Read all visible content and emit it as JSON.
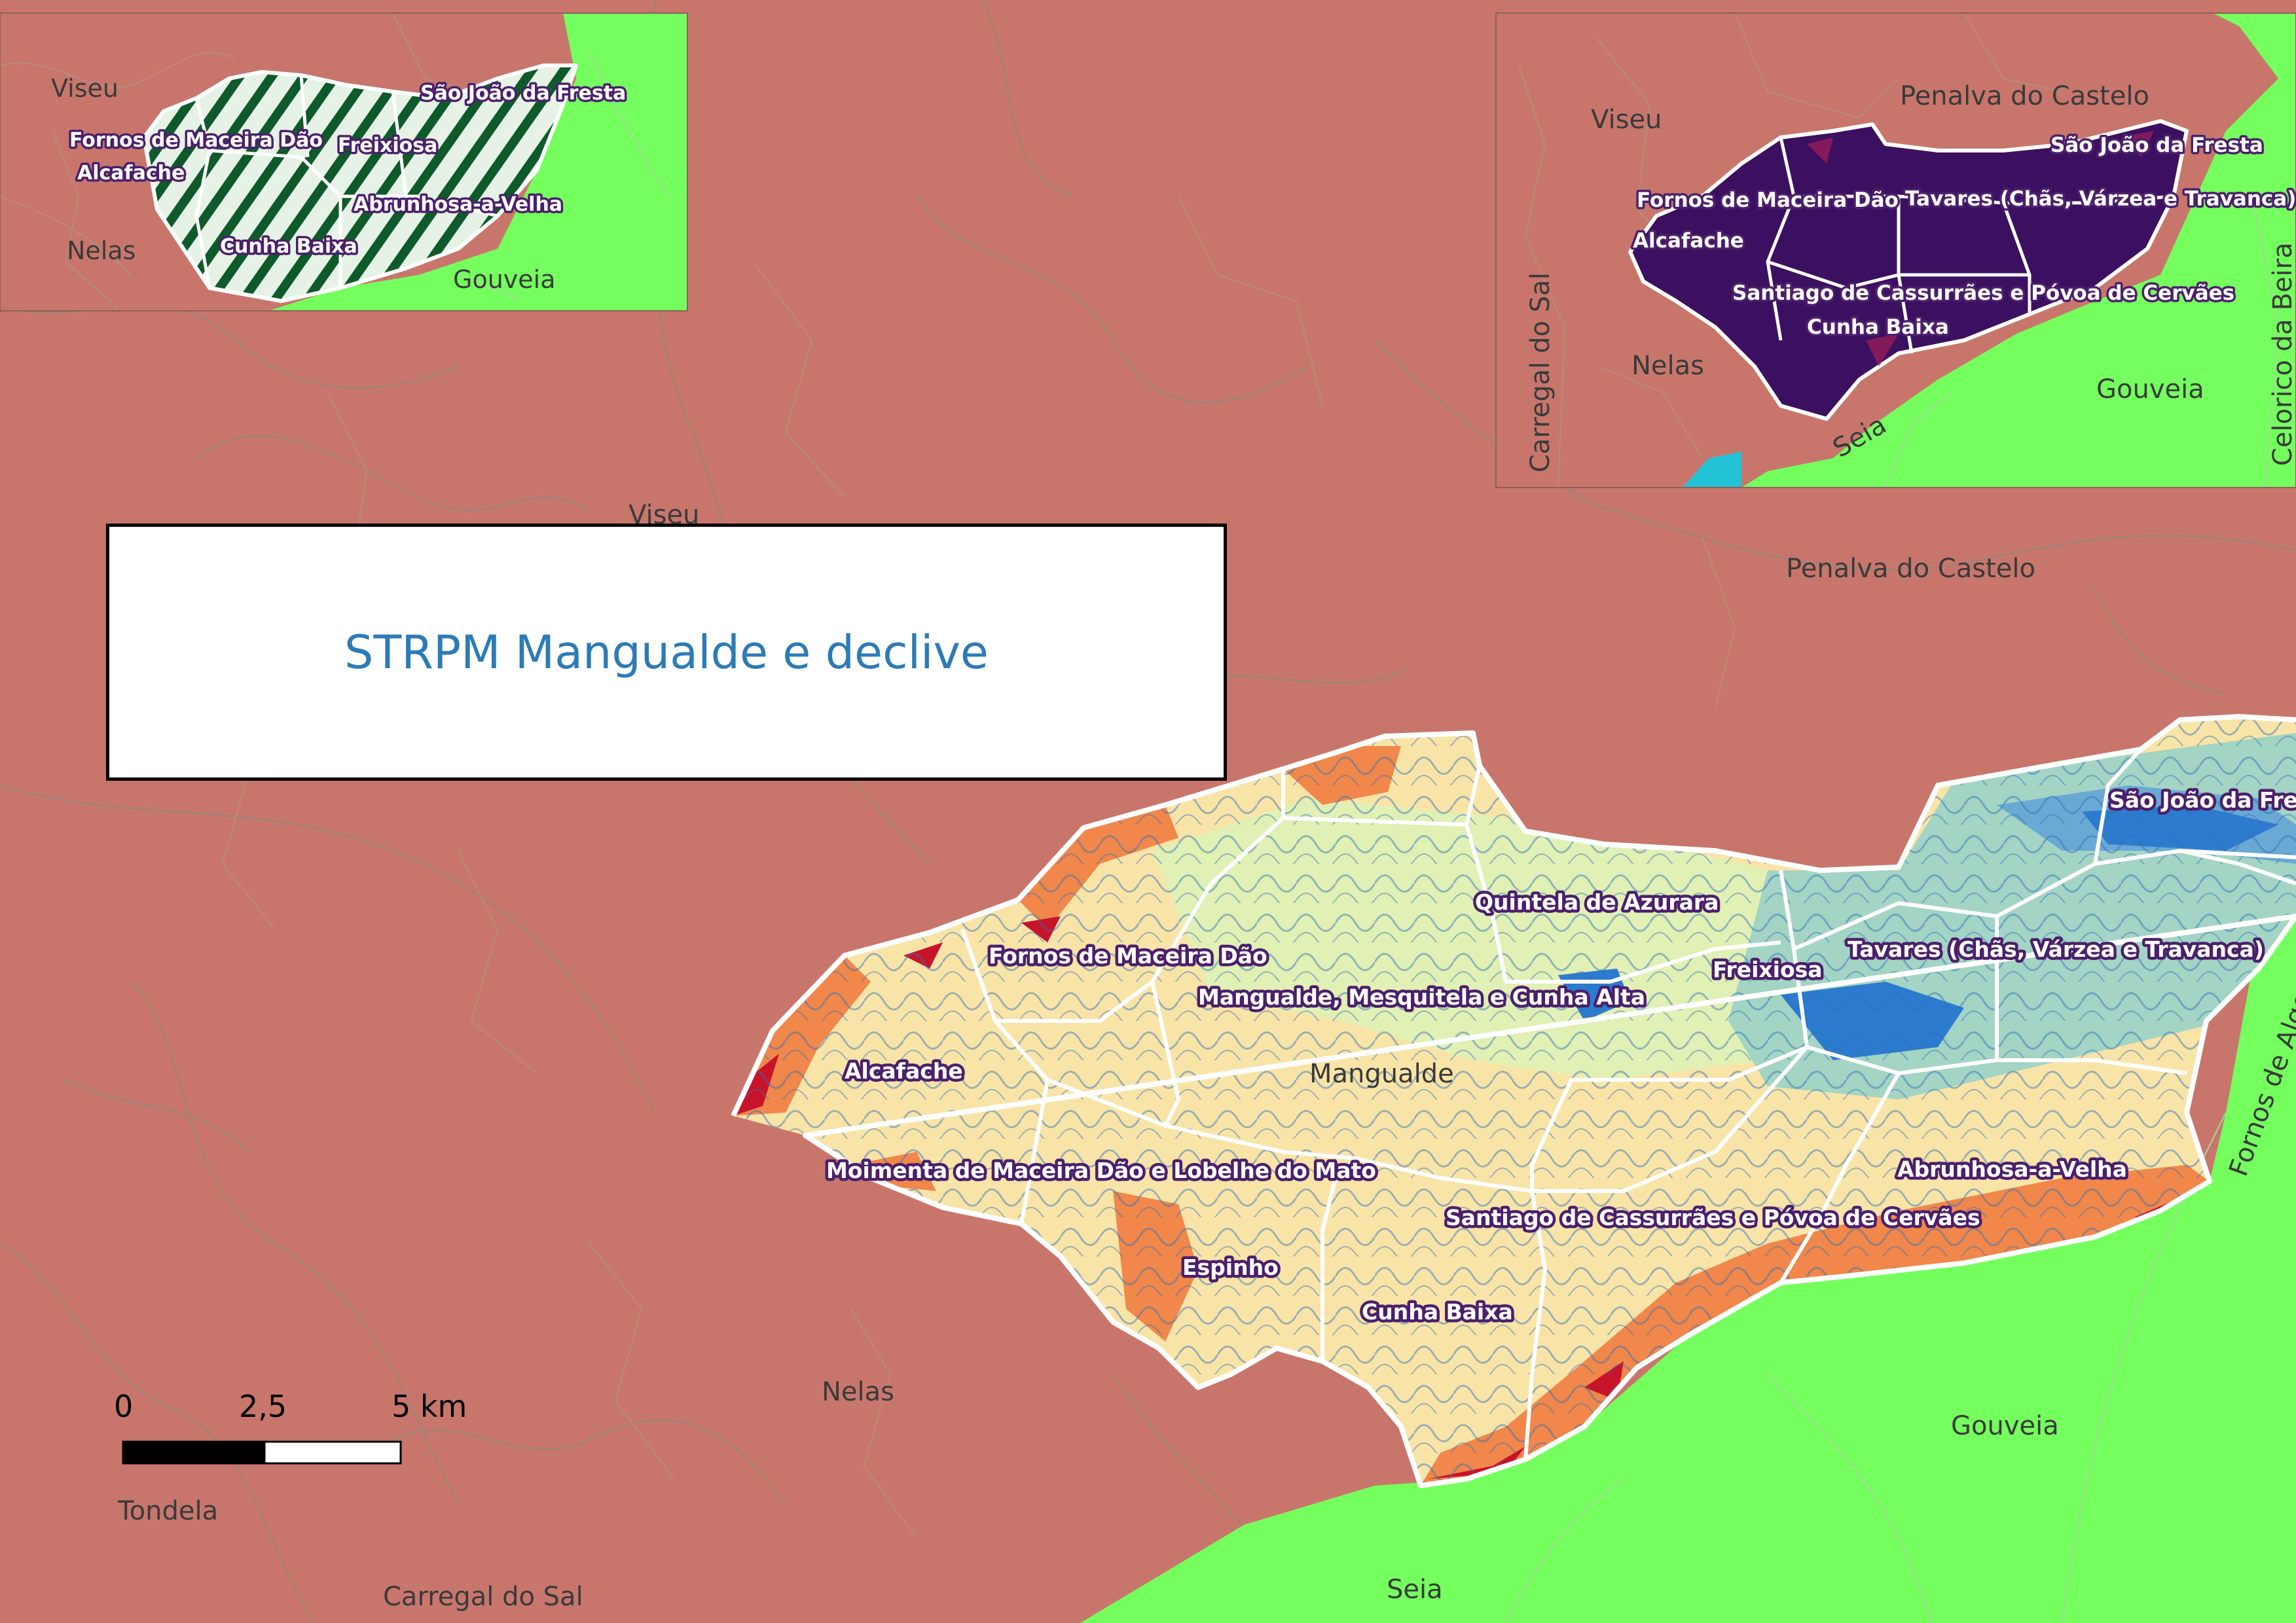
{
  "title": "STRPM Mangualde e declive",
  "colors": {
    "outside": "#c8766c",
    "neighbor_green": "#74ff5e",
    "boundary_white": "#ffffff",
    "label_halo": "#4b1f6b",
    "slope_low": "#f9e4a8",
    "slope_mid": "#e1f0b4",
    "slope_high": "#f1874a",
    "slope_steep": "#c8142a",
    "contour_blue": "#2c70b8",
    "inset_dark_green": "#0f5a2a",
    "inset_purple": "#3c1060",
    "water_cyan": "#22c3d6"
  },
  "main_map": {
    "municipality_labels": [
      "Viseu",
      "Penalva do Castelo",
      "Mangualde",
      "Nelas",
      "Tondela",
      "Carregal do Sal",
      "Seia",
      "Gouveia",
      "Fornos de Algodres"
    ],
    "parish_labels": [
      "São João da Fresta",
      "Quintela de Azurara",
      "Fornos de Maceira Dão",
      "Freixiosa",
      "Tavares (Chãs, Várzea e Travanca)",
      "Mangualde, Mesquitela e Cunha Alta",
      "Alcafache",
      "Moimenta de Maceira Dão e Lobelhe do Mato",
      "Abrunhosa-a-Velha",
      "Santiago de Cassurrães e Póvoa de Cervães",
      "Espinho",
      "Cunha Baixa"
    ]
  },
  "inset_left": {
    "municipality_labels": [
      "Viseu",
      "Nelas",
      "Gouveia"
    ],
    "parish_labels": [
      "São João da Fresta",
      "Fornos de Maceira Dão",
      "Freixiosa",
      "Alcafache",
      "Abrunhosa-a-Velha",
      "Cunha Baixa"
    ]
  },
  "inset_right": {
    "municipality_labels": [
      "Penalva do Castelo",
      "Viseu",
      "Carregal do Sal",
      "Nelas",
      "Gouveia",
      "Seia",
      "Celorico da Beira"
    ],
    "parish_labels": [
      "São João da Fresta",
      "Fornos de Maceira Dão",
      "Tavares (Chãs, Várzea e Travanca)",
      "Alcafache",
      "Santiago de Cassurrães e Póvoa de Cervães",
      "Cunha Baixa"
    ]
  },
  "scale_bar": {
    "labels": [
      "0",
      "2,5",
      "5 km"
    ]
  }
}
